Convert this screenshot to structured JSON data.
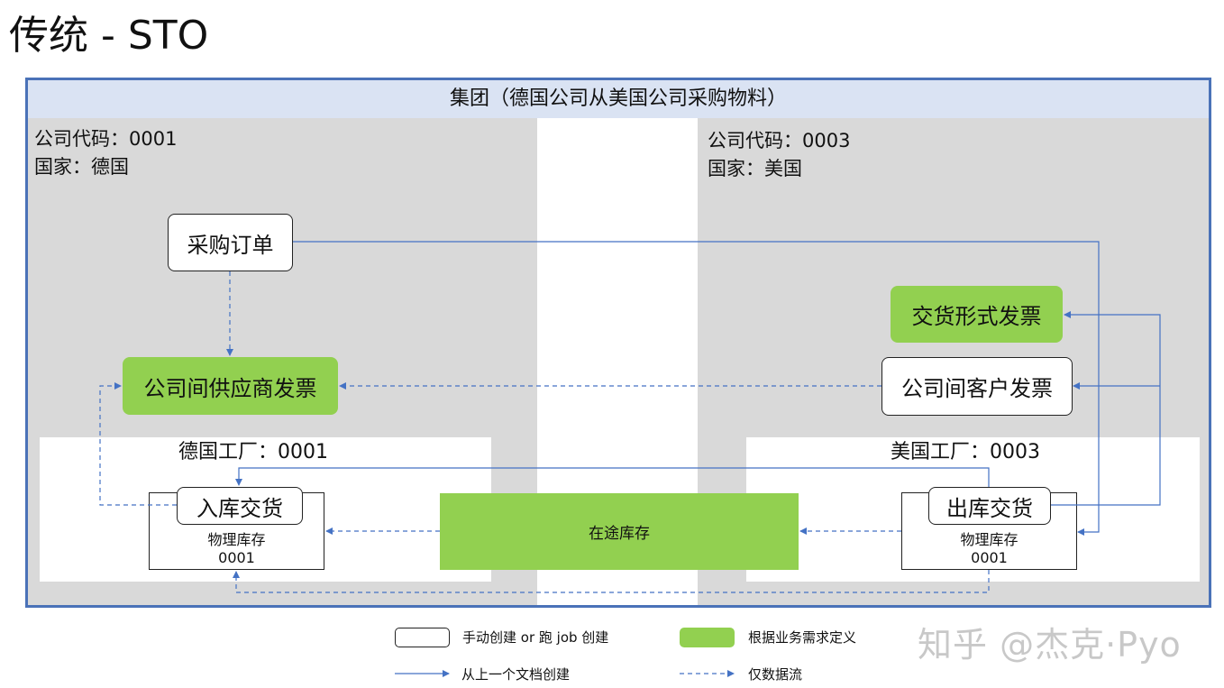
{
  "title": "传统 - STO",
  "group_header": "集团（德国公司从美国公司采购物料）",
  "left_company": {
    "code_line": "公司代码：0001",
    "country_line": "国家：德国"
  },
  "right_company": {
    "code_line": "公司代码：0003",
    "country_line": "国家：美国"
  },
  "nodes": {
    "purchase_order": "采购订单",
    "intercompany_vendor_invoice": "公司间供应商发票",
    "proforma_invoice": "交货形式发票",
    "intercompany_customer_invoice": "公司间客户发票",
    "inbound_delivery": "入库交货",
    "outbound_delivery": "出库交货",
    "stock_in_transit": "在途库存"
  },
  "left_plant": {
    "label": "德国工厂：0001",
    "stock_label": "物理库存",
    "stock_code": "0001"
  },
  "right_plant": {
    "label": "美国工厂：0003",
    "stock_label": "物理库存",
    "stock_code": "0001"
  },
  "legend": {
    "manual": "手动创建 or 跑 job 创建",
    "business_defined": "根据业务需求定义",
    "from_previous_doc": "从上一个文档创建",
    "data_flow_only": "仅数据流"
  },
  "watermark": "知乎 @杰克·Pyo",
  "colors": {
    "green": "#92d050",
    "blue": "#4472c4",
    "band": "#dae3f3",
    "gray": "#d9d9d9"
  }
}
